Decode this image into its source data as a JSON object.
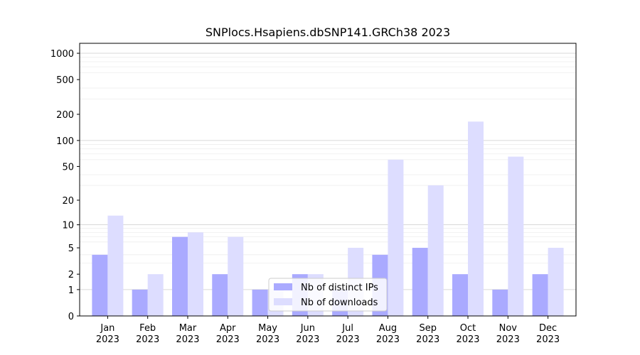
{
  "chart_data": {
    "type": "bar",
    "title": "SNPlocs.Hsapiens.dbSNP141.GRCh38 2023",
    "xlabel": "",
    "ylabel": "",
    "y_scale": "log1p",
    "y_ticks": [
      0,
      1,
      2,
      5,
      10,
      20,
      50,
      100,
      200,
      500,
      1000
    ],
    "ylim": [
      0,
      1300
    ],
    "grid": true,
    "legend_position": "bottom-center",
    "categories": [
      {
        "month": "Jan",
        "year": "2023"
      },
      {
        "month": "Feb",
        "year": "2023"
      },
      {
        "month": "Mar",
        "year": "2023"
      },
      {
        "month": "Apr",
        "year": "2023"
      },
      {
        "month": "May",
        "year": "2023"
      },
      {
        "month": "Jun",
        "year": "2023"
      },
      {
        "month": "Jul",
        "year": "2023"
      },
      {
        "month": "Aug",
        "year": "2023"
      },
      {
        "month": "Sep",
        "year": "2023"
      },
      {
        "month": "Oct",
        "year": "2023"
      },
      {
        "month": "Nov",
        "year": "2023"
      },
      {
        "month": "Dec",
        "year": "2023"
      }
    ],
    "series": [
      {
        "name": "Nb of distinct IPs",
        "color": "#aaaaff",
        "values": [
          4,
          1,
          7,
          2,
          1,
          2,
          1,
          4,
          5,
          2,
          1,
          2
        ]
      },
      {
        "name": "Nb of downloads",
        "color": "#ddddff",
        "values": [
          13,
          2,
          8,
          7,
          1,
          2,
          5,
          60,
          30,
          165,
          65,
          5
        ]
      }
    ]
  }
}
